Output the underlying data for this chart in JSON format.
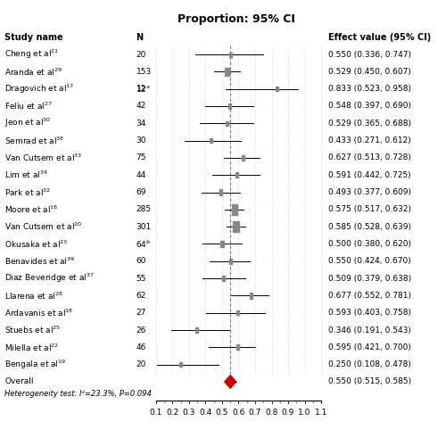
{
  "title": "Proportion: 95% CI",
  "col_study": "Study name",
  "col_n": "N",
  "col_effect": "Effect value (95% CI)",
  "studies": [
    {
      "name": "Cheng et al",
      "sup": "21",
      "n": "20",
      "n_val": 20,
      "effect": 0.55,
      "lower": 0.336,
      "upper": 0.747,
      "effect_str": "0.550 (0.336, 0.747)"
    },
    {
      "name": "Aranda et al",
      "sup": "29",
      "n": "153",
      "n_val": 153,
      "effect": 0.529,
      "lower": 0.45,
      "upper": 0.607,
      "effect_str": "0.529 (0.450, 0.607)"
    },
    {
      "name": "Dragovich et al",
      "sup": "17",
      "n": "12a",
      "n_val": 12,
      "effect": 0.833,
      "lower": 0.523,
      "upper": 0.958,
      "effect_str": "0.833 (0.523, 0.958)"
    },
    {
      "name": "Feliu et al",
      "sup": "27",
      "n": "42",
      "n_val": 42,
      "effect": 0.548,
      "lower": 0.397,
      "upper": 0.69,
      "effect_str": "0.548 (0.397, 0.690)"
    },
    {
      "name": "Jeon et al",
      "sup": "30",
      "n": "34",
      "n_val": 34,
      "effect": 0.529,
      "lower": 0.365,
      "upper": 0.688,
      "effect_str": "0.529 (0.365, 0.688)"
    },
    {
      "name": "Semrad et al",
      "sup": "38",
      "n": "30",
      "n_val": 30,
      "effect": 0.433,
      "lower": 0.271,
      "upper": 0.612,
      "effect_str": "0.433 (0.271, 0.612)"
    },
    {
      "name": "Van Cutsem et al",
      "sup": "33",
      "n": "75",
      "n_val": 75,
      "effect": 0.627,
      "lower": 0.513,
      "upper": 0.728,
      "effect_str": "0.627 (0.513, 0.728)"
    },
    {
      "name": "Lim et al",
      "sup": "34",
      "n": "44",
      "n_val": 44,
      "effect": 0.591,
      "lower": 0.442,
      "upper": 0.725,
      "effect_str": "0.591 (0.442, 0.725)"
    },
    {
      "name": "Park et al",
      "sup": "32",
      "n": "69",
      "n_val": 69,
      "effect": 0.493,
      "lower": 0.377,
      "upper": 0.609,
      "effect_str": "0.493 (0.377, 0.609)"
    },
    {
      "name": "Moore et al",
      "sup": "16",
      "n": "285",
      "n_val": 285,
      "effect": 0.575,
      "lower": 0.517,
      "upper": 0.632,
      "effect_str": "0.575 (0.517, 0.632)"
    },
    {
      "name": "Van Cutsem et al",
      "sup": "20",
      "n": "301",
      "n_val": 301,
      "effect": 0.585,
      "lower": 0.528,
      "upper": 0.639,
      "effect_str": "0.585 (0.528, 0.639)"
    },
    {
      "name": "Okusaka et al",
      "sup": "23",
      "n": "64b",
      "n_val": 64,
      "effect": 0.5,
      "lower": 0.38,
      "upper": 0.62,
      "effect_str": "0.500 (0.380, 0.620)"
    },
    {
      "name": "Benavides et al",
      "sup": "39",
      "n": "60",
      "n_val": 60,
      "effect": 0.55,
      "lower": 0.424,
      "upper": 0.67,
      "effect_str": "0.550 (0.424, 0.670)"
    },
    {
      "name": "Diaz Beveridge et al",
      "sup": "37",
      "n": "55",
      "n_val": 55,
      "effect": 0.509,
      "lower": 0.379,
      "upper": 0.638,
      "effect_str": "0.509 (0.379, 0.638)"
    },
    {
      "name": "Llarena et al",
      "sup": "28",
      "n": "62",
      "n_val": 62,
      "effect": 0.677,
      "lower": 0.552,
      "upper": 0.781,
      "effect_str": "0.677 (0.552, 0.781)"
    },
    {
      "name": "Ardavanis et al",
      "sup": "18",
      "n": "27",
      "n_val": 27,
      "effect": 0.593,
      "lower": 0.403,
      "upper": 0.758,
      "effect_str": "0.593 (0.403, 0.758)"
    },
    {
      "name": "Stuebs et al",
      "sup": "25",
      "n": "26",
      "n_val": 26,
      "effect": 0.346,
      "lower": 0.191,
      "upper": 0.543,
      "effect_str": "0.346 (0.191, 0.543)"
    },
    {
      "name": "Milella et al",
      "sup": "22",
      "n": "46",
      "n_val": 46,
      "effect": 0.595,
      "lower": 0.421,
      "upper": 0.7,
      "effect_str": "0.595 (0.421, 0.700)"
    },
    {
      "name": "Bengala et al",
      "sup": "19",
      "n": "20",
      "n_val": 20,
      "effect": 0.25,
      "lower": 0.108,
      "upper": 0.478,
      "effect_str": "0.250 (0.108, 0.478)"
    }
  ],
  "overall": {
    "effect": 0.55,
    "lower": 0.515,
    "upper": 0.585,
    "effect_str": "0.550 (0.515, 0.585)"
  },
  "heterogeneity_text": "Heterogeneity test: I²=23.3%, P=0.094",
  "xmin": 0.1,
  "xmax": 1.1,
  "xticks": [
    0.1,
    0.2,
    0.3,
    0.4,
    0.5,
    0.6,
    0.7,
    0.8,
    0.9,
    1.0,
    1.1
  ],
  "xtick_labels": [
    "0.1",
    "0.2",
    "0.3",
    "0.4",
    "0.5",
    "0.6",
    "0.7",
    "0.8",
    "0.9",
    "1.0",
    "1.1"
  ],
  "vline_x": 0.55,
  "square_color": "#888888",
  "diamond_color": "#cc0000",
  "ci_line_color": "#000000",
  "dotted_line_color": "#cccccc",
  "text_color": "#000000",
  "bg_color": "#ffffff",
  "title_fontsize": 9,
  "header_fontsize": 7,
  "body_fontsize": 6.5,
  "effect_fontsize": 6.5,
  "hetero_fontsize": 6.0,
  "axis_label_fontsize": 6.5
}
